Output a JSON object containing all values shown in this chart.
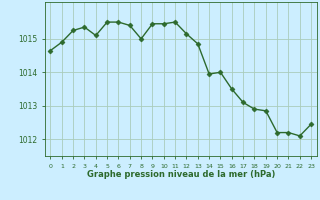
{
  "x": [
    0,
    1,
    2,
    3,
    4,
    5,
    6,
    7,
    8,
    9,
    10,
    11,
    12,
    13,
    14,
    15,
    16,
    17,
    18,
    19,
    20,
    21,
    22,
    23
  ],
  "y": [
    1014.65,
    1014.9,
    1015.25,
    1015.35,
    1015.1,
    1015.5,
    1015.5,
    1015.4,
    1015.0,
    1015.45,
    1015.45,
    1015.5,
    1015.15,
    1014.85,
    1013.95,
    1014.0,
    1013.5,
    1013.1,
    1012.9,
    1012.85,
    1012.2,
    1012.2,
    1012.1,
    1012.45
  ],
  "line_color": "#2d6a2d",
  "marker": "D",
  "marker_size": 2.5,
  "bg_color": "#cceeff",
  "grid_color": "#aaccbb",
  "xlabel": "Graphe pression niveau de la mer (hPa)",
  "xlabel_color": "#2d6a2d",
  "tick_color": "#2d6a2d",
  "ylim": [
    1011.5,
    1016.1
  ],
  "yticks": [
    1012,
    1013,
    1014,
    1015
  ],
  "xlim": [
    -0.5,
    23.5
  ],
  "xticks": [
    0,
    1,
    2,
    3,
    4,
    5,
    6,
    7,
    8,
    9,
    10,
    11,
    12,
    13,
    14,
    15,
    16,
    17,
    18,
    19,
    20,
    21,
    22,
    23
  ]
}
